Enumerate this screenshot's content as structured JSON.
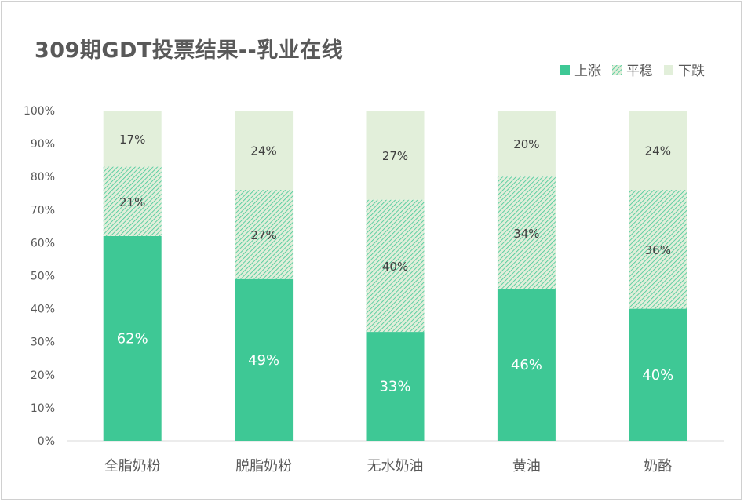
{
  "colors": {
    "up": "#3ec895",
    "flat_bg": "#e1eeda",
    "flat_hatch": "#3ec895",
    "down": "#e2efda",
    "axis_text": "#595959",
    "label_dark": "#404040",
    "label_light": "#ffffff",
    "grid": "#d9d9d9"
  },
  "chart_data": {
    "type": "bar",
    "stacked": true,
    "title": "309期GDT投票结果--乳业在线",
    "xlabel": "",
    "ylabel": "",
    "ylim": [
      0,
      100
    ],
    "yticks": [
      "0%",
      "10%",
      "20%",
      "30%",
      "40%",
      "50%",
      "60%",
      "70%",
      "80%",
      "90%",
      "100%"
    ],
    "legend_position": "top-right",
    "categories": [
      "全脂奶粉",
      "脱脂奶粉",
      "无水奶油",
      "黄油",
      "奶酪"
    ],
    "series": [
      {
        "name": "上涨",
        "values": [
          62,
          49,
          33,
          46,
          40
        ],
        "labels": [
          "62%",
          "49%",
          "33%",
          "46%",
          "40%"
        ]
      },
      {
        "name": "平稳",
        "values": [
          21,
          27,
          40,
          34,
          36
        ],
        "labels": [
          "21%",
          "27%",
          "40%",
          "34%",
          "36%"
        ]
      },
      {
        "name": "下跌",
        "values": [
          17,
          24,
          27,
          20,
          24
        ],
        "labels": [
          "17%",
          "24%",
          "27%",
          "20%",
          "24%"
        ]
      }
    ]
  }
}
